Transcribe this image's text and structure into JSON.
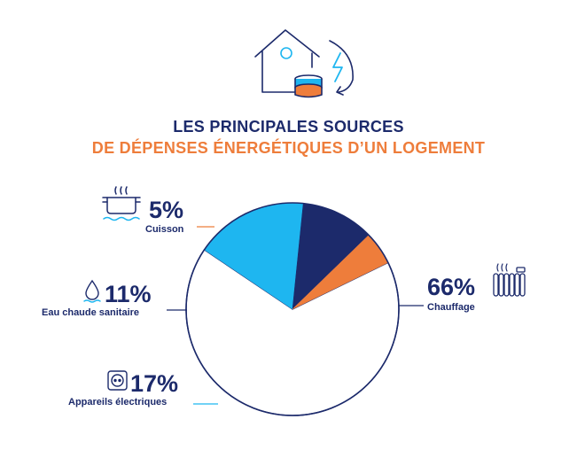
{
  "title_line1": "LES PRINCIPALES SOURCES",
  "title_line2": "DE DÉPENSES ÉNERGÉTIQUES D’UN LOGEMENT",
  "colors": {
    "navy": "#1c2a6b",
    "orange": "#ee7d3b",
    "cyan": "#1eb6f0",
    "white": "#ffffff"
  },
  "chart_data": {
    "type": "pie",
    "slices": [
      {
        "label": "Chauffage",
        "value": 66,
        "display": "66%",
        "color": "#ffffff",
        "icon": "radiator-icon"
      },
      {
        "label": "Appareils électriques",
        "value": 17,
        "display": "17%",
        "color": "#1eb6f0",
        "icon": "power-outlet-icon"
      },
      {
        "label": "Eau chaude sanitaire",
        "value": 11,
        "display": "11%",
        "color": "#1c2a6b",
        "icon": "hot-water-icon"
      },
      {
        "label": "Cuisson",
        "value": 5,
        "display": "5%",
        "color": "#ee7d3b",
        "icon": "cooking-pot-icon"
      }
    ],
    "start_angle_deg": -26,
    "direction": "clockwise"
  },
  "header_icon": "house-energy-coins-icon"
}
